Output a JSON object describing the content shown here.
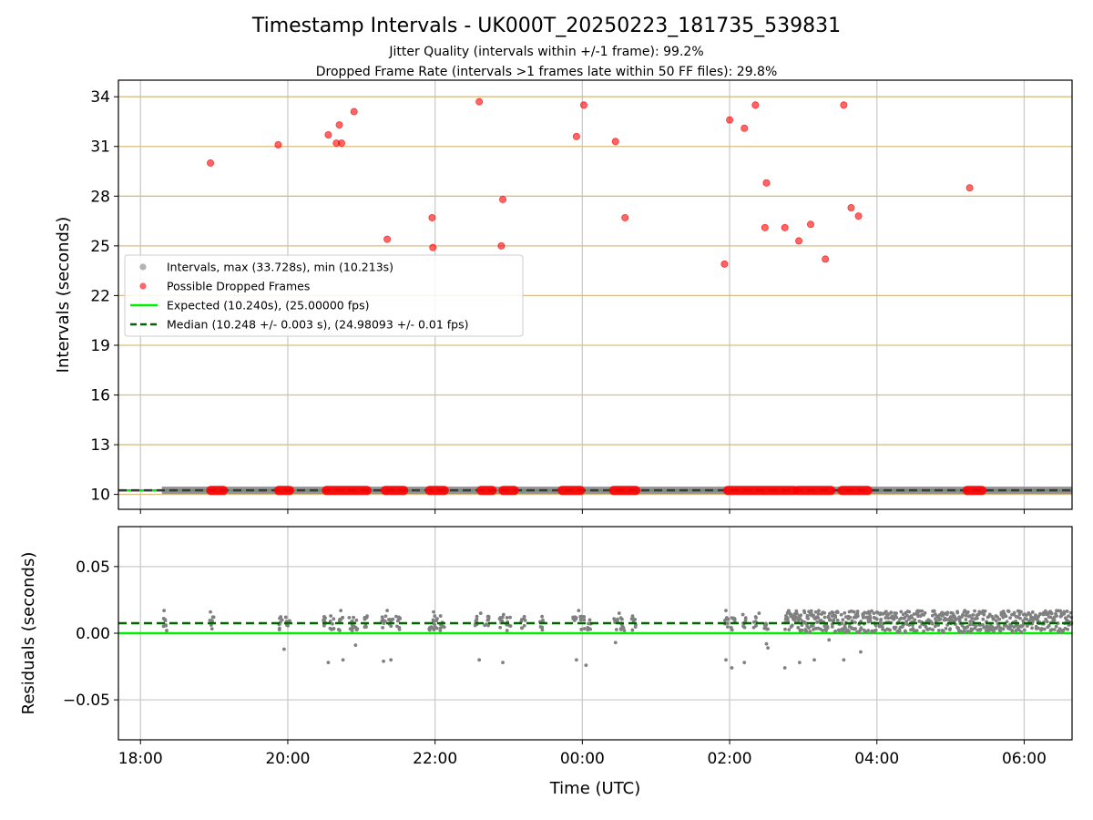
{
  "chart_data": [
    {
      "type": "scatter",
      "title": "Timestamp Intervals - UK000T_20250223_181735_539831",
      "subtitle_lines": [
        "Jitter Quality (intervals within +/-1 frame): 99.2%",
        "Dropped Frame Rate (intervals >1 frames late within 50 FF files): 29.8%"
      ],
      "xlabel": "",
      "ylabel": "Intervals (seconds)",
      "x_unit": "hours since 18:00 UTC",
      "xlim": [
        -0.3,
        12.65
      ],
      "ylim": [
        9.1,
        35.0
      ],
      "yticks": [
        10,
        13,
        16,
        19,
        22,
        25,
        28,
        31,
        34
      ],
      "grid": true,
      "colors": {
        "intervals": "#808080",
        "dropped": "#ff0000",
        "expected": "#00ee00",
        "median": "#006400",
        "hgrid": "#d9be7f",
        "vgrid": "#cccccc"
      },
      "legend": {
        "placement": "center-left",
        "entries": [
          "Intervals, max (33.728s), min (10.213s)",
          "Possible Dropped Frames",
          "Expected (10.240s), (25.00000 fps)",
          "Median (10.248 +/- 0.003 s), (24.98093 +/- 0.01 fps)"
        ]
      },
      "series": [
        {
          "name": "Intervals, max (33.728s), min (10.213s)",
          "kind": "band",
          "x_range": [
            0.29,
            12.65
          ],
          "y": 10.248
        },
        {
          "name": "Expected (10.240s), (25.00000 fps)",
          "kind": "hline",
          "y": 10.24
        },
        {
          "name": "Median (10.248 +/- 0.003 s), (24.98093 +/- 0.01 fps)",
          "kind": "hline-dashed",
          "y": 10.248
        },
        {
          "name": "Possible Dropped Frames",
          "kind": "points",
          "points": [
            [
              0.95,
              30.0
            ],
            [
              1.87,
              31.1
            ],
            [
              2.55,
              31.7
            ],
            [
              2.66,
              31.2
            ],
            [
              2.7,
              32.3
            ],
            [
              2.73,
              31.2
            ],
            [
              2.9,
              33.1
            ],
            [
              3.35,
              25.4
            ],
            [
              3.96,
              26.7
            ],
            [
              3.97,
              24.9
            ],
            [
              4.6,
              33.7
            ],
            [
              4.9,
              25.0
            ],
            [
              4.92,
              27.8
            ],
            [
              5.92,
              31.6
            ],
            [
              6.02,
              33.5
            ],
            [
              6.45,
              31.3
            ],
            [
              6.58,
              26.7
            ],
            [
              7.93,
              23.9
            ],
            [
              8.0,
              32.6
            ],
            [
              8.2,
              32.1
            ],
            [
              8.35,
              33.5
            ],
            [
              8.5,
              28.8
            ],
            [
              8.48,
              26.1
            ],
            [
              8.75,
              26.1
            ],
            [
              8.94,
              25.3
            ],
            [
              9.1,
              26.3
            ],
            [
              9.3,
              24.2
            ],
            [
              9.55,
              33.5
            ],
            [
              9.65,
              27.3
            ],
            [
              9.75,
              26.8
            ],
            [
              11.26,
              28.5
            ]
          ]
        },
        {
          "name": "",
          "kind": "dropped-band",
          "y": 10.24,
          "segments": [
            [
              0.93,
              1.15
            ],
            [
              1.85,
              2.05
            ],
            [
              2.5,
              3.1
            ],
            [
              3.3,
              3.6
            ],
            [
              3.9,
              4.15
            ],
            [
              4.6,
              4.8
            ],
            [
              4.9,
              5.1
            ],
            [
              5.7,
              6.0
            ],
            [
              6.4,
              6.75
            ],
            [
              7.95,
              8.9
            ],
            [
              8.9,
              9.4
            ],
            [
              9.5,
              9.9
            ],
            [
              11.2,
              11.45
            ]
          ]
        }
      ]
    },
    {
      "type": "scatter",
      "title": "",
      "xlabel": "Time (UTC)",
      "ylabel": "Residuals (seconds)",
      "xlim": [
        -0.3,
        12.65
      ],
      "ylim": [
        -0.08,
        0.08
      ],
      "yticks": [
        -0.05,
        0.0,
        0.05
      ],
      "ytick_labels": [
        "−0.05",
        "0.00",
        "0.05"
      ],
      "xticks": [
        0,
        2,
        4,
        6,
        8,
        10,
        12
      ],
      "xtick_labels": [
        "18:00",
        "20:00",
        "22:00",
        "00:00",
        "02:00",
        "04:00",
        "06:00"
      ],
      "grid": true,
      "series": [
        {
          "name": "",
          "kind": "hline",
          "y": 0.0
        },
        {
          "name": "",
          "kind": "hline-dashed",
          "y": 0.0075
        },
        {
          "name": "",
          "kind": "points",
          "color": "#808080",
          "points": [
            [
              0.32,
              0.017
            ],
            [
              0.95,
              0.016
            ],
            [
              1.95,
              -0.012
            ],
            [
              2.55,
              -0.022
            ],
            [
              2.72,
              0.017
            ],
            [
              2.75,
              -0.02
            ],
            [
              2.92,
              -0.009
            ],
            [
              3.35,
              0.017
            ],
            [
              3.3,
              -0.021
            ],
            [
              3.4,
              -0.02
            ],
            [
              3.98,
              0.016
            ],
            [
              4.6,
              -0.02
            ],
            [
              4.62,
              0.015
            ],
            [
              4.92,
              -0.022
            ],
            [
              4.93,
              0.014
            ],
            [
              5.95,
              0.017
            ],
            [
              5.92,
              -0.02
            ],
            [
              6.05,
              -0.024
            ],
            [
              6.45,
              -0.007
            ],
            [
              6.5,
              0.015
            ],
            [
              7.95,
              0.017
            ],
            [
              7.95,
              -0.02
            ],
            [
              8.03,
              -0.026
            ],
            [
              8.18,
              0.014
            ],
            [
              8.2,
              -0.022
            ],
            [
              8.4,
              0.015
            ],
            [
              8.5,
              -0.008
            ],
            [
              8.52,
              -0.011
            ],
            [
              8.75,
              -0.026
            ],
            [
              8.95,
              -0.022
            ],
            [
              9.15,
              -0.02
            ],
            [
              9.35,
              -0.005
            ],
            [
              9.55,
              -0.02
            ],
            [
              9.78,
              -0.014
            ]
          ]
        },
        {
          "name": "",
          "kind": "clusters",
          "color": "#808080",
          "x": [
            0.33,
            0.97,
            1.9,
            2.0,
            2.5,
            2.6,
            2.72,
            2.85,
            2.92,
            3.05,
            3.3,
            3.4,
            3.5,
            3.95,
            4.0,
            4.1,
            4.55,
            4.7,
            4.9,
            5.0,
            5.2,
            5.45,
            5.9,
            6.0,
            6.1,
            6.45,
            6.55,
            6.7,
            7.95,
            8.05,
            8.2,
            8.35,
            8.5
          ],
          "range": [
            0.002,
            0.013
          ]
        },
        {
          "name": "",
          "kind": "dense-band",
          "color": "#808080",
          "x_range": [
            8.75,
            12.65
          ],
          "range": [
            0.001,
            0.017
          ]
        }
      ]
    }
  ]
}
